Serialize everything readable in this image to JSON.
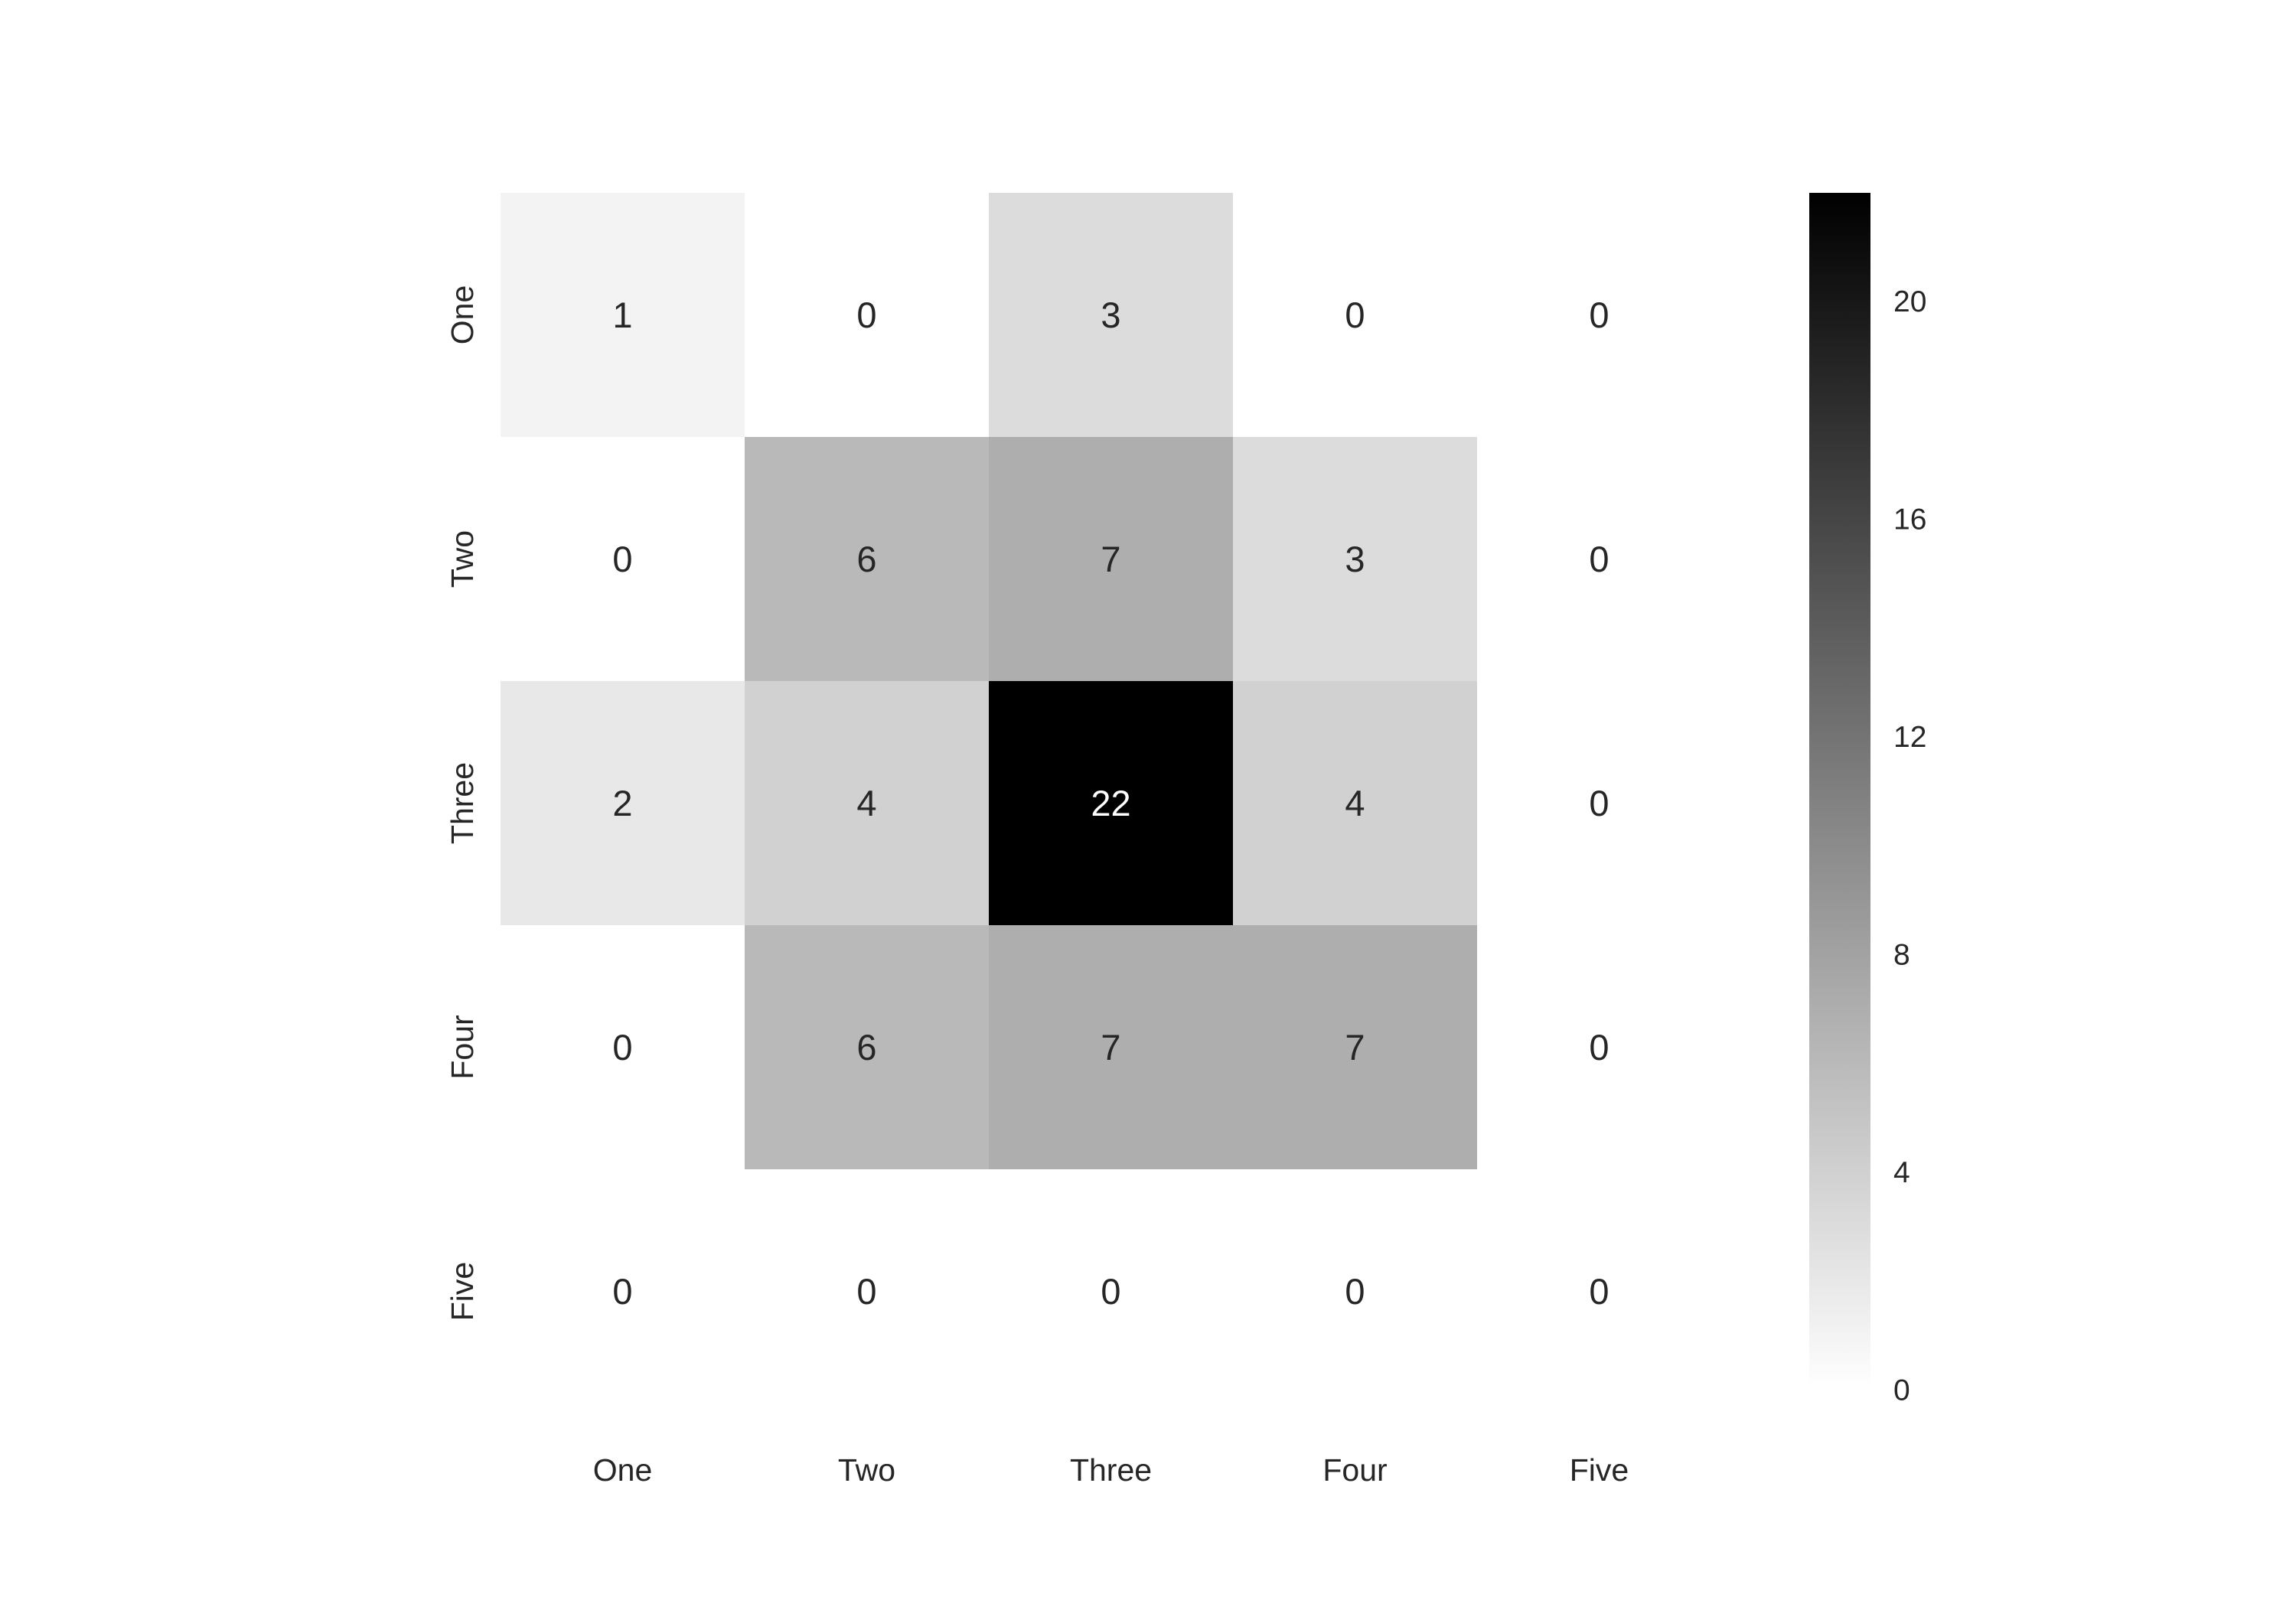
{
  "chart_data": {
    "type": "heatmap",
    "title": "",
    "xlabel": "",
    "ylabel": "",
    "x_categories": [
      "One",
      "Two",
      "Three",
      "Four",
      "Five"
    ],
    "y_categories": [
      "One",
      "Two",
      "Three",
      "Four",
      "Five"
    ],
    "values": [
      [
        1,
        0,
        3,
        0,
        0
      ],
      [
        0,
        6,
        7,
        3,
        0
      ],
      [
        2,
        4,
        22,
        4,
        0
      ],
      [
        0,
        6,
        7,
        7,
        0
      ],
      [
        0,
        0,
        0,
        0,
        0
      ]
    ],
    "colormap": "Greys",
    "color_low": "#ffffff",
    "color_high": "#000000",
    "vmin": 0,
    "vmax": 22,
    "colorbar": {
      "ticks": [
        0,
        4,
        8,
        12,
        16,
        20
      ],
      "placement": "right"
    },
    "annotations": true,
    "grid": false
  }
}
